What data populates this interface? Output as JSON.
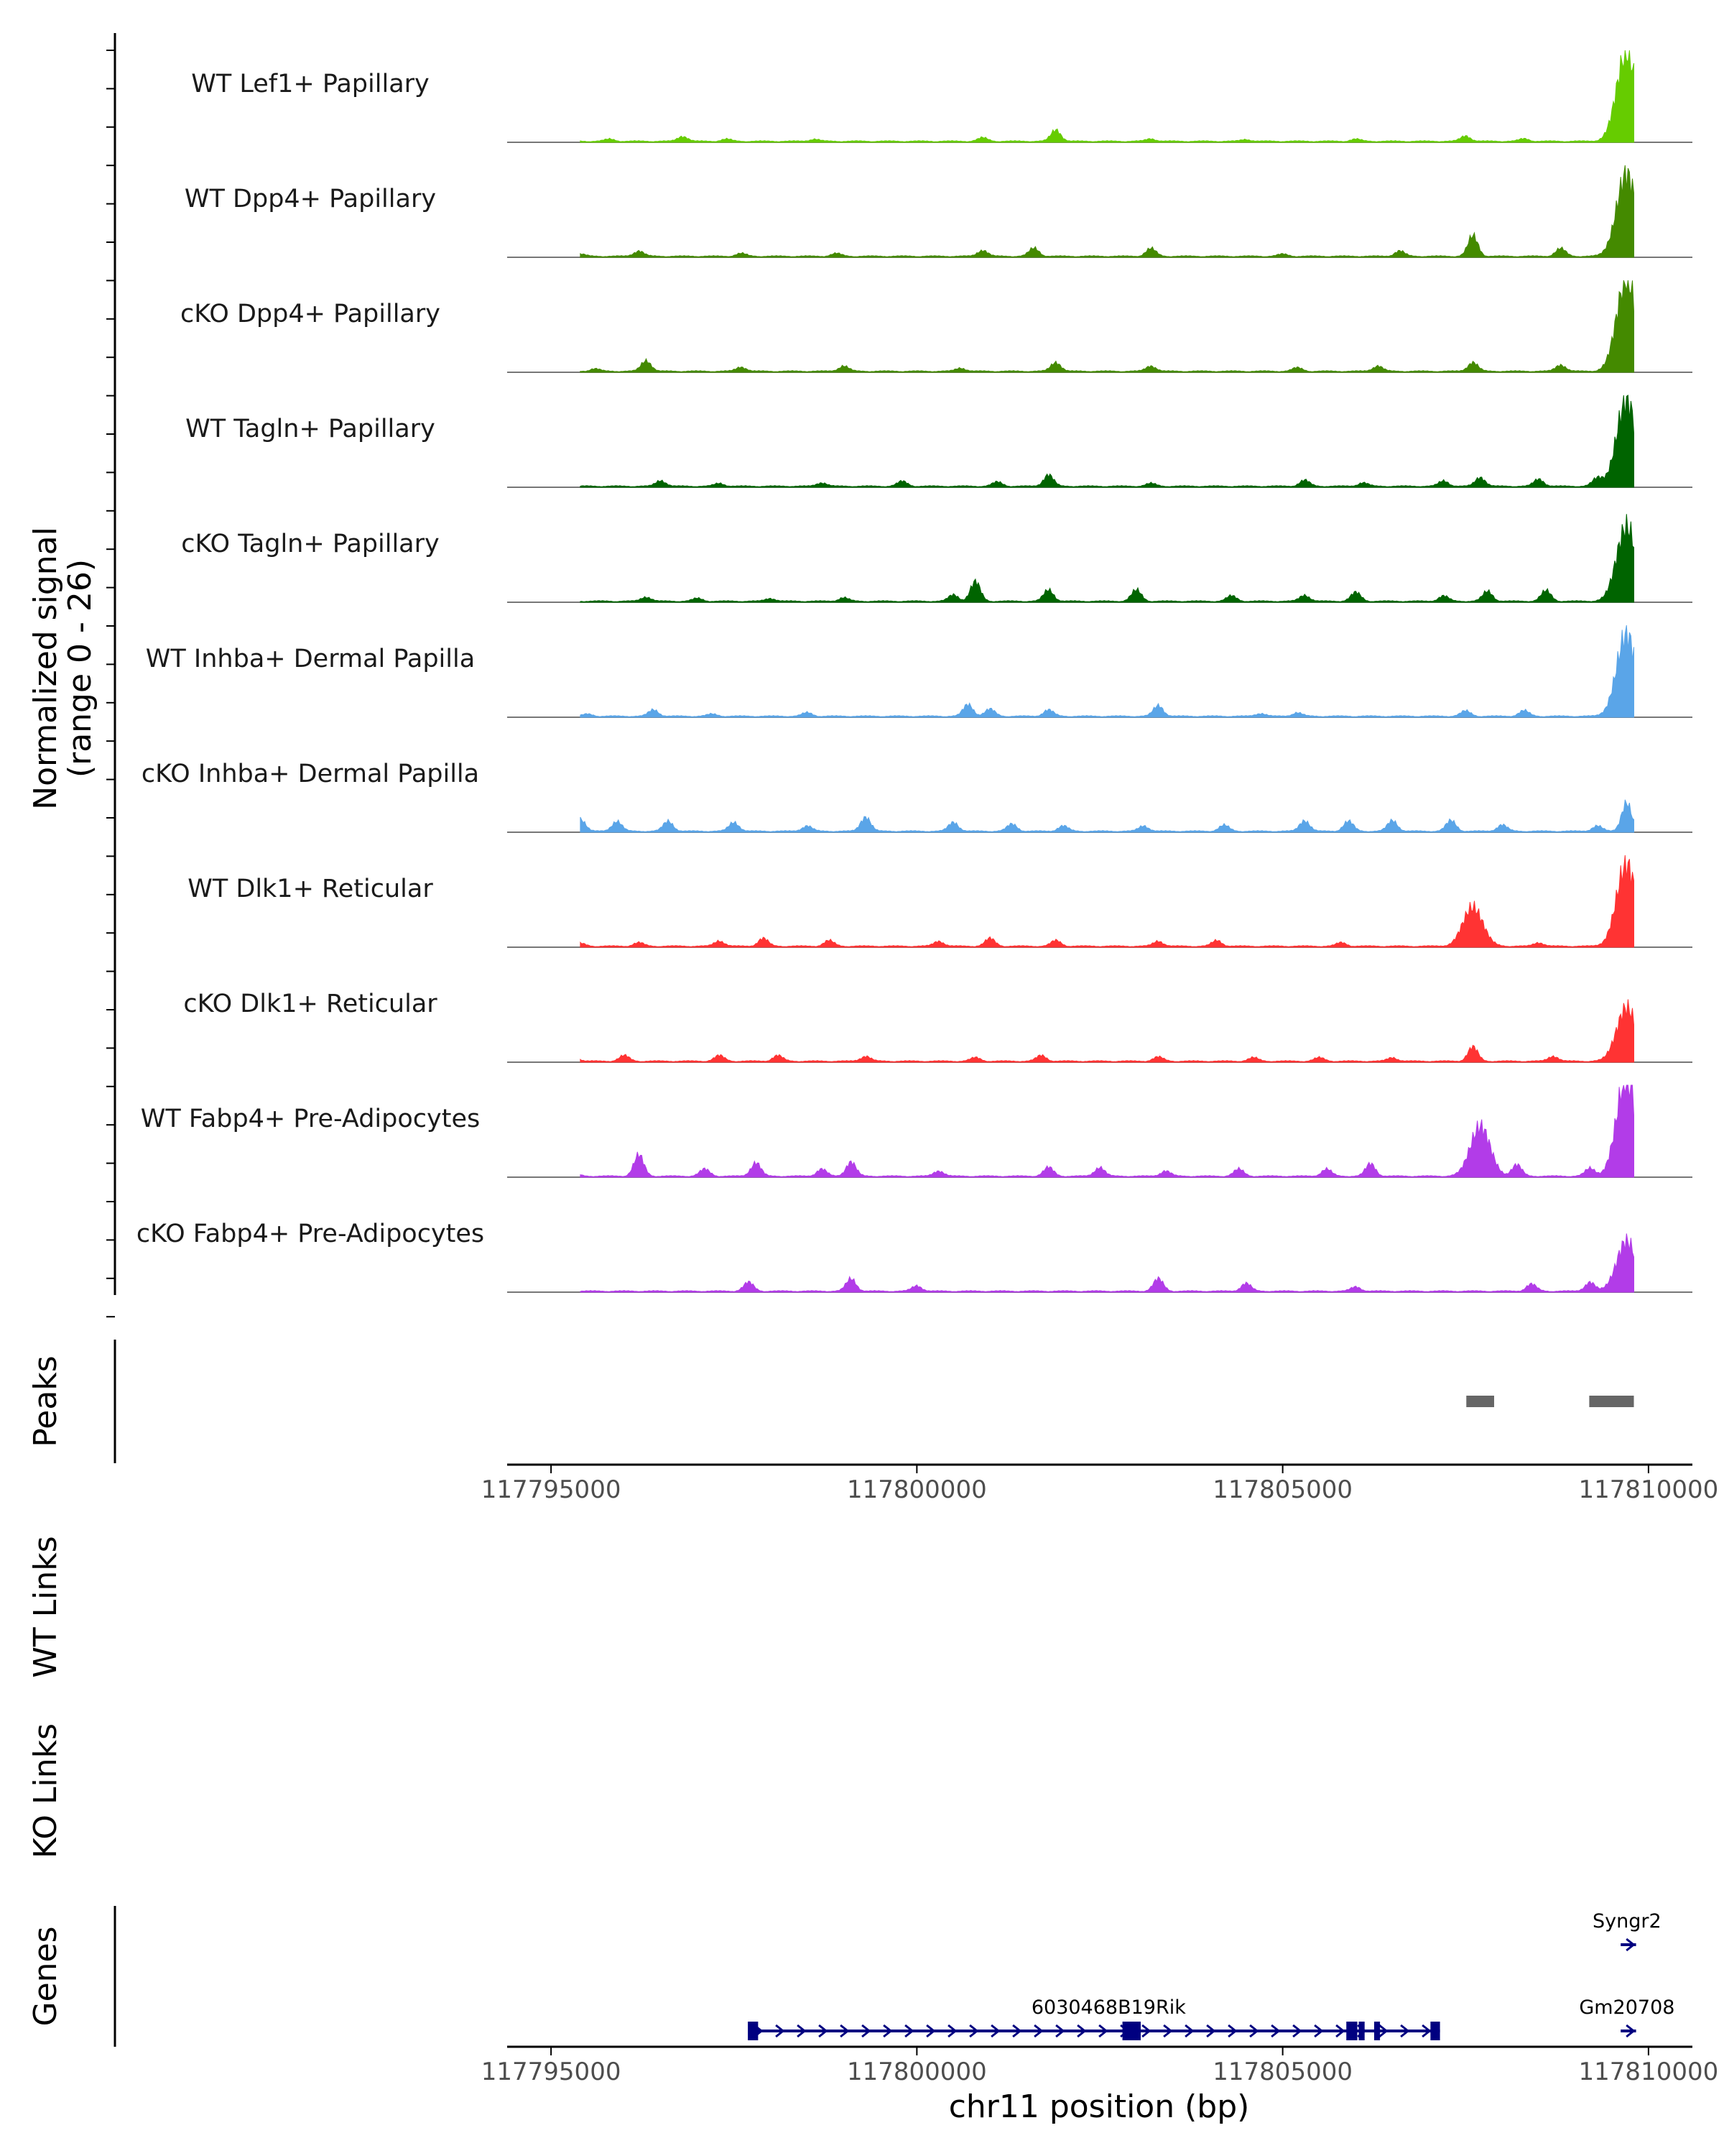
{
  "chart_data": {
    "type": "area",
    "title": "",
    "region": "chr11",
    "x_range": [
      117794400,
      117810600
    ],
    "xlabel": "chr11 position (bp)",
    "x_ticks": [
      117795000,
      117800000,
      117805000,
      117810000
    ],
    "x_tick_labels": [
      "117795000",
      "117800000",
      "117805000",
      "117810000"
    ],
    "y_axis_title": "Normalized signal",
    "y_axis_subtitle": "(range 0 - 26)",
    "y_range": [
      0,
      26
    ],
    "tracks": [
      {
        "label": "WT Lef1+ Papillary",
        "color": "#66cc00",
        "peaks": [
          [
            117795800,
            0.6
          ],
          [
            117796800,
            1.4
          ],
          [
            117797400,
            0.6
          ],
          [
            117798600,
            0.6
          ],
          [
            117800900,
            1.0
          ],
          [
            117801900,
            3.2
          ],
          [
            117803200,
            0.7
          ],
          [
            117804500,
            0.5
          ],
          [
            117806000,
            0.6
          ],
          [
            117807500,
            1.5
          ],
          [
            117808300,
            0.7
          ],
          [
            117809700,
            25.0
          ]
        ]
      },
      {
        "label": "WT Dpp4+ Papillary",
        "color": "#448a00",
        "peaks": [
          [
            117795400,
            0.6
          ],
          [
            117796200,
            1.5
          ],
          [
            117797600,
            0.8
          ],
          [
            117798900,
            0.8
          ],
          [
            117800900,
            1.7
          ],
          [
            117801600,
            2.3
          ],
          [
            117803200,
            2.2
          ],
          [
            117805000,
            0.6
          ],
          [
            117806600,
            1.5
          ],
          [
            117807600,
            5.8
          ],
          [
            117808800,
            2.2
          ],
          [
            117809700,
            23.0
          ]
        ]
      },
      {
        "label": "cKO Dpp4+ Papillary",
        "color": "#448a00",
        "peaks": [
          [
            117795600,
            0.7
          ],
          [
            117796300,
            3.0
          ],
          [
            117797600,
            1.2
          ],
          [
            117799000,
            1.5
          ],
          [
            117800600,
            0.9
          ],
          [
            117801900,
            2.5
          ],
          [
            117803200,
            1.5
          ],
          [
            117805200,
            1.0
          ],
          [
            117806300,
            1.5
          ],
          [
            117807600,
            2.5
          ],
          [
            117808800,
            1.8
          ],
          [
            117809700,
            26.0
          ]
        ]
      },
      {
        "label": "WT Tagln+ Papillary",
        "color": "#006400",
        "peaks": [
          [
            117796500,
            1.6
          ],
          [
            117797300,
            0.8
          ],
          [
            117798700,
            1.0
          ],
          [
            117799800,
            1.4
          ],
          [
            117801100,
            1.2
          ],
          [
            117801800,
            3.2
          ],
          [
            117803200,
            0.8
          ],
          [
            117805300,
            1.7
          ],
          [
            117806100,
            1.0
          ],
          [
            117807200,
            1.5
          ],
          [
            117807700,
            2.5
          ],
          [
            117808500,
            2.0
          ],
          [
            117809300,
            2.2
          ],
          [
            117809700,
            24.0
          ]
        ]
      },
      {
        "label": "cKO Tagln+ Papillary",
        "color": "#006400",
        "peaks": [
          [
            117796300,
            1.2
          ],
          [
            117797000,
            0.8
          ],
          [
            117798000,
            0.8
          ],
          [
            117799000,
            1.0
          ],
          [
            117800500,
            1.8
          ],
          [
            117800800,
            5.5
          ],
          [
            117801800,
            3.2
          ],
          [
            117803000,
            3.2
          ],
          [
            117804300,
            1.5
          ],
          [
            117805300,
            1.7
          ],
          [
            117806000,
            2.5
          ],
          [
            117807200,
            1.5
          ],
          [
            117807800,
            2.8
          ],
          [
            117808600,
            3.0
          ],
          [
            117809700,
            21.0
          ]
        ]
      },
      {
        "label": "WT Inhba+ Dermal Papilla",
        "color": "#5aa5e8",
        "peaks": [
          [
            117795500,
            0.6
          ],
          [
            117796400,
            1.8
          ],
          [
            117797200,
            0.6
          ],
          [
            117798500,
            1.0
          ],
          [
            117800700,
            3.3
          ],
          [
            117801000,
            2.0
          ],
          [
            117801800,
            1.8
          ],
          [
            117803300,
            3.0
          ],
          [
            117804700,
            0.8
          ],
          [
            117805200,
            1.0
          ],
          [
            117807500,
            1.5
          ],
          [
            117808300,
            1.6
          ],
          [
            117809700,
            23.0
          ]
        ]
      },
      {
        "label": "cKO Inhba+ Dermal Papilla",
        "color": "#5aa5e8",
        "peaks": [
          [
            117795400,
            3.5
          ],
          [
            117795900,
            2.8
          ],
          [
            117796600,
            2.8
          ],
          [
            117797500,
            2.5
          ],
          [
            117798500,
            1.5
          ],
          [
            117799300,
            4.0
          ],
          [
            117800500,
            2.5
          ],
          [
            117801300,
            2.0
          ],
          [
            117802000,
            1.5
          ],
          [
            117803100,
            1.5
          ],
          [
            117804200,
            1.7
          ],
          [
            117805300,
            3.0
          ],
          [
            117805900,
            2.8
          ],
          [
            117806500,
            3.0
          ],
          [
            117807300,
            3.0
          ],
          [
            117808000,
            1.8
          ],
          [
            117809300,
            1.5
          ],
          [
            117809700,
            8.0
          ]
        ]
      },
      {
        "label": "WT Dlk1+ Reticular",
        "color": "#ff3333",
        "peaks": [
          [
            117795400,
            0.8
          ],
          [
            117796200,
            1.0
          ],
          [
            117797300,
            1.5
          ],
          [
            117797900,
            2.2
          ],
          [
            117798800,
            1.6
          ],
          [
            117800300,
            1.4
          ],
          [
            117801000,
            2.2
          ],
          [
            117801900,
            1.6
          ],
          [
            117803300,
            1.4
          ],
          [
            117804100,
            1.6
          ],
          [
            117805800,
            1.0
          ],
          [
            117807600,
            11.0
          ],
          [
            117808500,
            1.0
          ],
          [
            117809700,
            23.0
          ]
        ]
      },
      {
        "label": "cKO Dlk1+ Reticular",
        "color": "#ff3333",
        "peaks": [
          [
            117795300,
            1.8
          ],
          [
            117796000,
            1.6
          ],
          [
            117797300,
            1.6
          ],
          [
            117798100,
            1.6
          ],
          [
            117799300,
            1.4
          ],
          [
            117800800,
            1.0
          ],
          [
            117801700,
            1.6
          ],
          [
            117803300,
            1.2
          ],
          [
            117804600,
            1.0
          ],
          [
            117805500,
            1.0
          ],
          [
            117806500,
            1.0
          ],
          [
            117807600,
            4.0
          ],
          [
            117808700,
            1.4
          ],
          [
            117809700,
            15.0
          ]
        ]
      },
      {
        "label": "WT Fabp4+ Pre-Adipocytes",
        "color": "#b23ce8",
        "peaks": [
          [
            117795300,
            1.2
          ],
          [
            117796200,
            6.0
          ],
          [
            117797100,
            2.0
          ],
          [
            117797800,
            3.8
          ],
          [
            117798700,
            2.0
          ],
          [
            117799100,
            4.0
          ],
          [
            117800300,
            1.5
          ],
          [
            117801800,
            2.5
          ],
          [
            117802500,
            2.5
          ],
          [
            117803400,
            1.5
          ],
          [
            117804400,
            2.0
          ],
          [
            117805600,
            2.0
          ],
          [
            117806200,
            3.5
          ],
          [
            117807700,
            14.0
          ],
          [
            117808200,
            3.2
          ],
          [
            117809200,
            2.2
          ],
          [
            117809700,
            28.0
          ]
        ]
      },
      {
        "label": "cKO Fabp4+ Pre-Adipocytes",
        "color": "#b23ce8",
        "peaks": [
          [
            117797700,
            2.5
          ],
          [
            117799100,
            3.5
          ],
          [
            117800000,
            1.5
          ],
          [
            117803300,
            3.5
          ],
          [
            117804500,
            2.2
          ],
          [
            117806000,
            1.2
          ],
          [
            117808400,
            2.0
          ],
          [
            117809200,
            2.5
          ],
          [
            117809700,
            14.0
          ]
        ]
      }
    ],
    "peaks_track": {
      "label": "Peaks",
      "color": "#666666",
      "regions": [
        [
          117807510,
          117807890
        ],
        [
          117809190,
          117809800
        ]
      ]
    },
    "link_tracks": [
      {
        "label": "WT Links"
      },
      {
        "label": "KO Links"
      }
    ],
    "genes_track": {
      "label": "Genes",
      "color": "#000080",
      "genes": [
        {
          "name": "6030468B19Rik",
          "start": 117797700,
          "end": 117807150,
          "strand": "+",
          "row": 2,
          "exons": [
            [
              117797690,
              117797830
            ],
            [
              117802810,
              117803060
            ],
            [
              117805870,
              117806020
            ],
            [
              117806040,
              117806120
            ],
            [
              117806250,
              117806330
            ],
            [
              117807020,
              117807150
            ]
          ]
        },
        {
          "name": "Syngr2",
          "start": 117809620,
          "end": 117809830,
          "strand": "+",
          "row": 1,
          "exons": []
        },
        {
          "name": "Gm20708",
          "start": 117809620,
          "end": 117809830,
          "strand": "+",
          "row": 2,
          "exons": []
        }
      ]
    }
  }
}
